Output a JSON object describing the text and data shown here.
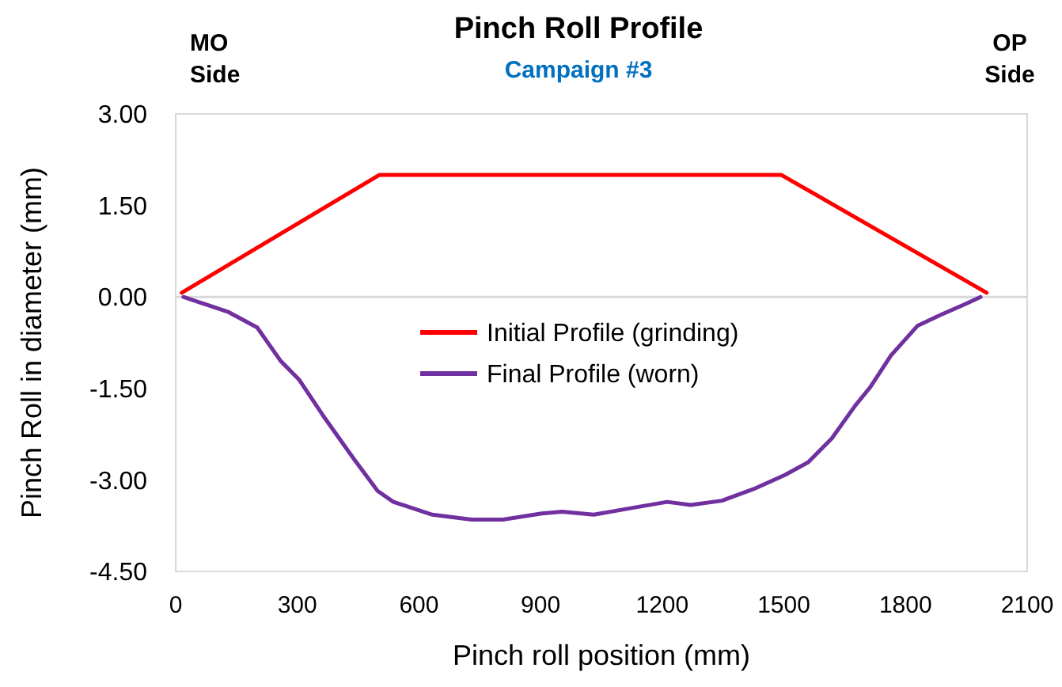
{
  "chart_data": {
    "type": "line",
    "title": "Pinch Roll Profile",
    "subtitle": "Campaign #3",
    "xlabel": "Pinch roll position (mm)",
    "ylabel": "Pinch Roll in diameter (mm)",
    "annotations": [
      "MO\nSide",
      "OP\nSide"
    ],
    "xlim": [
      0,
      2100
    ],
    "xticks": [
      0,
      300,
      600,
      900,
      1200,
      1500,
      1800,
      2100
    ],
    "ylim": [
      -4.5,
      3
    ],
    "yticks": [
      {
        "value": -4.5,
        "label": "-4.50"
      },
      {
        "value": -3,
        "label": "-3.00"
      },
      {
        "value": -1.5,
        "label": "-1.50"
      },
      {
        "value": 0,
        "label": "0.00"
      },
      {
        "value": 1.5,
        "label": "1.50"
      },
      {
        "value": 3,
        "label": "3.00"
      }
    ],
    "ref_lines": [
      {
        "axis": "y",
        "value": 0,
        "color": "#d9d9d9"
      }
    ],
    "grid": false,
    "legend": "center",
    "marker": "none",
    "line_style": "solid",
    "series": [
      {
        "name": "Initial Profile (grinding)",
        "color": "#ff0000",
        "x": [
          15,
          502,
          1494,
          2000
        ],
        "values": [
          0.07,
          2.0,
          2.0,
          0.07
        ]
      },
      {
        "name": "Final Profile (worn)",
        "color": "#7030a0",
        "x": [
          19,
          73,
          131,
          201,
          259,
          305,
          363,
          440,
          498,
          537,
          633,
          730,
          807,
          903,
          953,
          1031,
          1116,
          1212,
          1270,
          1347,
          1425,
          1502,
          1560,
          1618,
          1676,
          1714,
          1764,
          1830,
          1888,
          1946,
          1985
        ],
        "values": [
          0,
          -0.12,
          -0.25,
          -0.5,
          -1.05,
          -1.36,
          -1.94,
          -2.66,
          -3.18,
          -3.36,
          -3.57,
          -3.65,
          -3.65,
          -3.55,
          -3.52,
          -3.57,
          -3.47,
          -3.36,
          -3.41,
          -3.34,
          -3.15,
          -2.92,
          -2.71,
          -2.32,
          -1.78,
          -1.47,
          -0.96,
          -0.47,
          -0.29,
          -0.12,
          0
        ]
      }
    ]
  }
}
